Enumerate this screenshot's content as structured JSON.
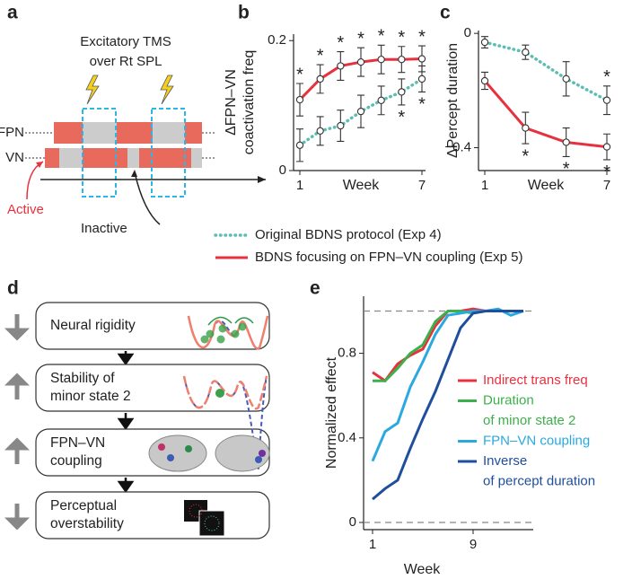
{
  "panel_labels": [
    "a",
    "b",
    "c",
    "d",
    "e"
  ],
  "panel_a": {
    "tms_label": [
      "Excitatory TMS",
      "over Rt SPL"
    ],
    "rows": [
      "FPN",
      "VN"
    ],
    "active": "Active",
    "inactive": "Inactive"
  },
  "chart_data": [
    {
      "type": "line",
      "ylabel": [
        "ΔFPN–VN",
        "coactivation freq"
      ],
      "xlabel": "Week",
      "xlim": [
        1,
        7
      ],
      "xticks": [
        1,
        7
      ],
      "ylim": [
        0,
        0.21
      ],
      "yticks": [
        0,
        0.2
      ],
      "star_label": "*",
      "series": [
        {
          "name": "Original BDNS protocol (Exp 4)",
          "color": "#5cbdb2",
          "style": "dotted",
          "x": [
            1,
            2,
            3,
            4,
            5,
            6,
            7
          ],
          "values": [
            0.039,
            0.061,
            0.069,
            0.091,
            0.108,
            0.121,
            0.141
          ],
          "errors": [
            0.025,
            0.022,
            0.024,
            0.025,
            0.022,
            0.02,
            0.02
          ],
          "stars": [
            6,
            7
          ],
          "star_side": "below"
        },
        {
          "name": "BDNS focusing on FPN–VN coupling (Exp 5)",
          "color": "#e8313f",
          "style": "solid",
          "x": [
            1,
            2,
            3,
            4,
            5,
            6,
            7
          ],
          "values": [
            0.109,
            0.141,
            0.161,
            0.167,
            0.171,
            0.171,
            0.172
          ],
          "errors": [
            0.025,
            0.022,
            0.022,
            0.022,
            0.022,
            0.02,
            0.02
          ],
          "stars": [
            1,
            2,
            3,
            4,
            5,
            6,
            7
          ],
          "star_side": "above"
        }
      ]
    },
    {
      "type": "line",
      "ylabel": [
        "ΔPercept duration"
      ],
      "xlabel": "Week",
      "xlim": [
        1,
        7
      ],
      "xticks": [
        1,
        7
      ],
      "ylim": [
        -0.48,
        0.01
      ],
      "yticks": [
        0,
        {
          "value": -0.4,
          "label": "−0.4"
        }
      ],
      "star_label": "*",
      "series": [
        {
          "color": "#5cbdb2",
          "style": "dotted",
          "x": [
            1,
            3,
            5,
            7
          ],
          "values": [
            -0.031,
            -0.066,
            -0.159,
            -0.234
          ],
          "errors": [
            0.02,
            0.025,
            0.06,
            0.05
          ],
          "stars": [
            7
          ],
          "star_side": "above"
        },
        {
          "color": "#e8313f",
          "style": "solid",
          "x": [
            1,
            3,
            5,
            7
          ],
          "values": [
            -0.166,
            -0.331,
            -0.381,
            -0.397
          ],
          "errors": [
            0.03,
            0.055,
            0.05,
            0.045
          ],
          "stars": [
            3,
            5,
            7
          ],
          "star_side": "below"
        }
      ]
    },
    {
      "type": "line",
      "ylabel": [
        "Normalized effect"
      ],
      "xlabel": "Week",
      "xlim": [
        1,
        13.5
      ],
      "xticks": [
        1,
        9
      ],
      "ylim": [
        -0.034,
        1.07
      ],
      "yticks": [
        0,
        0.4,
        0.8
      ],
      "hlines": [
        0,
        1
      ],
      "legend": "right",
      "series": [
        {
          "name": [
            "Indirect trans freq"
          ],
          "color": "#e8313f",
          "style": "solid",
          "x": [
            1,
            2,
            3,
            4,
            5,
            6,
            7,
            8,
            9,
            10,
            11,
            12,
            13
          ],
          "values": [
            0.71,
            0.67,
            0.75,
            0.79,
            0.82,
            0.93,
            1.0,
            1.0,
            1.01,
            1.0,
            1.0,
            1.0,
            1.0
          ]
        },
        {
          "name": [
            "Duration",
            "of minor state 2"
          ],
          "color": "#3cb04a",
          "style": "solid",
          "x": [
            1,
            2,
            3,
            4,
            5,
            6,
            7,
            8,
            9,
            10,
            11,
            12,
            13
          ],
          "values": [
            0.67,
            0.67,
            0.73,
            0.8,
            0.84,
            0.95,
            1.0,
            1.0,
            0.99,
            1.0,
            1.0,
            1.0,
            1.0
          ]
        },
        {
          "name": [
            "FPN–VN coupling"
          ],
          "color": "#2aa9e0",
          "style": "solid",
          "x": [
            1,
            2,
            3,
            4,
            5,
            6,
            7,
            8,
            9,
            10,
            11,
            12,
            13
          ],
          "values": [
            0.29,
            0.43,
            0.47,
            0.64,
            0.76,
            0.89,
            0.98,
            0.99,
            1.0,
            1.0,
            1.01,
            0.98,
            1.0
          ]
        },
        {
          "name": [
            "Inverse",
            "of percept duration"
          ],
          "color": "#1f4e9c",
          "style": "solid",
          "x": [
            1,
            2,
            3,
            4,
            5,
            6,
            7,
            8,
            9,
            10,
            11,
            12,
            13
          ],
          "values": [
            0.11,
            0.16,
            0.2,
            0.35,
            0.49,
            0.62,
            0.77,
            0.92,
            0.99,
            1.0,
            1.0,
            1.0,
            1.0
          ]
        }
      ]
    }
  ],
  "panel_d": {
    "boxes": [
      [
        "Neural rigidity"
      ],
      [
        "Stability of",
        "minor state 2"
      ],
      [
        "FPN–VN",
        "coupling"
      ],
      [
        "Perceptual",
        "overstability"
      ]
    ],
    "directions": [
      "down",
      "up",
      "up",
      "down"
    ]
  }
}
